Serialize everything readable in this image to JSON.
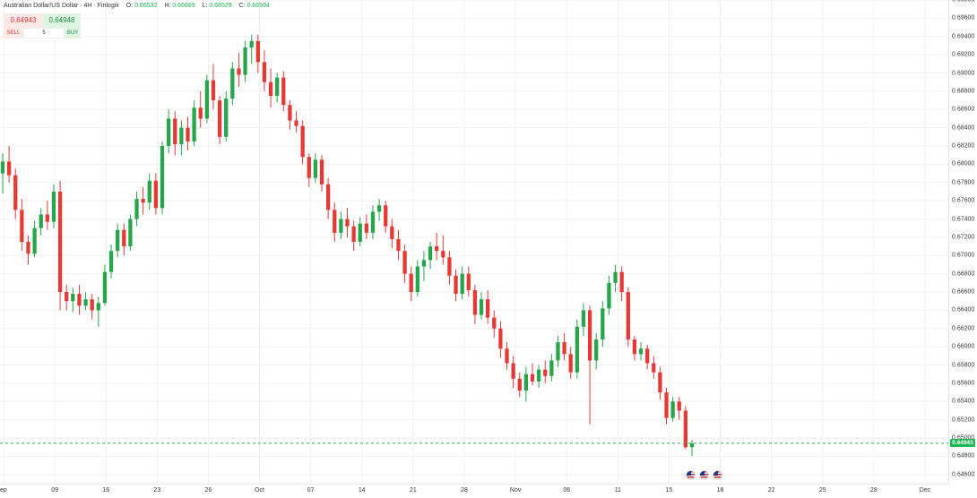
{
  "header": {
    "title": "Australian Dollar/US Dollar · 4H · Finlogix",
    "o_label": "O:",
    "o_value": "0.66532",
    "h_label": "H:",
    "h_value": "0.66689",
    "l_label": "L:",
    "l_value": "0.66529",
    "c_label": "C:",
    "c_value": "0.66594"
  },
  "trade": {
    "sell_price": "0.64943",
    "buy_price": "0.64948",
    "sell_label": "SELL",
    "buy_label": "BUY",
    "quantity": "5"
  },
  "current_price_label": "0.64943",
  "colors": {
    "up": "#26a64a",
    "down": "#e53935",
    "price_line": "#1db954"
  },
  "flags": [
    "us-flag-icon",
    "us-flag-icon",
    "us-flag-icon"
  ],
  "chart_data": {
    "type": "candlestick",
    "timeframe": "4H",
    "symbol": "AUD/USD",
    "ylim": [
      0.645,
      0.698
    ],
    "y_ticks": [
      "0.69800",
      "0.69600",
      "0.69400",
      "0.69200",
      "0.69000",
      "0.68800",
      "0.68600",
      "0.68400",
      "0.68200",
      "0.68000",
      "0.67800",
      "0.67600",
      "0.67400",
      "0.67200",
      "0.67000",
      "0.66800",
      "0.66600",
      "0.66400",
      "0.66200",
      "0.66000",
      "0.65800",
      "0.65600",
      "0.65400",
      "0.65200",
      "0.65000",
      "0.64800",
      "0.64600"
    ],
    "x_ticks": [
      "ep",
      "09",
      "16",
      "23",
      "26",
      "Oct",
      "07",
      "14",
      "21",
      "28",
      "Nov",
      "06",
      "11",
      "15",
      "18",
      "22",
      "25",
      "28",
      "Dec"
    ],
    "current_price": 0.64943,
    "grid": true,
    "candles": [
      {
        "o": 0.679,
        "h": 0.6812,
        "l": 0.6768,
        "c": 0.6803
      },
      {
        "o": 0.6803,
        "h": 0.682,
        "l": 0.678,
        "c": 0.6788
      },
      {
        "o": 0.6788,
        "h": 0.6795,
        "l": 0.674,
        "c": 0.675
      },
      {
        "o": 0.675,
        "h": 0.6762,
        "l": 0.6705,
        "c": 0.6715
      },
      {
        "o": 0.6715,
        "h": 0.6722,
        "l": 0.669,
        "c": 0.6702
      },
      {
        "o": 0.6702,
        "h": 0.6738,
        "l": 0.6698,
        "c": 0.673
      },
      {
        "o": 0.673,
        "h": 0.6752,
        "l": 0.6722,
        "c": 0.6745
      },
      {
        "o": 0.6745,
        "h": 0.676,
        "l": 0.6728,
        "c": 0.6737
      },
      {
        "o": 0.6737,
        "h": 0.6778,
        "l": 0.673,
        "c": 0.677
      },
      {
        "o": 0.677,
        "h": 0.6782,
        "l": 0.664,
        "c": 0.666
      },
      {
        "o": 0.666,
        "h": 0.6668,
        "l": 0.664,
        "c": 0.665
      },
      {
        "o": 0.665,
        "h": 0.6665,
        "l": 0.6638,
        "c": 0.6658
      },
      {
        "o": 0.6658,
        "h": 0.6668,
        "l": 0.6635,
        "c": 0.6645
      },
      {
        "o": 0.6645,
        "h": 0.666,
        "l": 0.664,
        "c": 0.6652
      },
      {
        "o": 0.6652,
        "h": 0.6658,
        "l": 0.663,
        "c": 0.664
      },
      {
        "o": 0.664,
        "h": 0.6655,
        "l": 0.6622,
        "c": 0.6648
      },
      {
        "o": 0.6648,
        "h": 0.669,
        "l": 0.6645,
        "c": 0.6682
      },
      {
        "o": 0.6682,
        "h": 0.6712,
        "l": 0.6675,
        "c": 0.6705
      },
      {
        "o": 0.6705,
        "h": 0.6735,
        "l": 0.6698,
        "c": 0.6728
      },
      {
        "o": 0.6728,
        "h": 0.6735,
        "l": 0.67,
        "c": 0.671
      },
      {
        "o": 0.671,
        "h": 0.6745,
        "l": 0.6705,
        "c": 0.674
      },
      {
        "o": 0.674,
        "h": 0.677,
        "l": 0.6732,
        "c": 0.6762
      },
      {
        "o": 0.6762,
        "h": 0.6775,
        "l": 0.6745,
        "c": 0.6758
      },
      {
        "o": 0.6758,
        "h": 0.679,
        "l": 0.675,
        "c": 0.6782
      },
      {
        "o": 0.6782,
        "h": 0.679,
        "l": 0.6745,
        "c": 0.6752
      },
      {
        "o": 0.6752,
        "h": 0.6825,
        "l": 0.6745,
        "c": 0.682
      },
      {
        "o": 0.682,
        "h": 0.686,
        "l": 0.6812,
        "c": 0.685
      },
      {
        "o": 0.685,
        "h": 0.6858,
        "l": 0.681,
        "c": 0.6822
      },
      {
        "o": 0.6822,
        "h": 0.6848,
        "l": 0.681,
        "c": 0.684
      },
      {
        "o": 0.684,
        "h": 0.6852,
        "l": 0.6815,
        "c": 0.6825
      },
      {
        "o": 0.6825,
        "h": 0.687,
        "l": 0.682,
        "c": 0.6862
      },
      {
        "o": 0.6862,
        "h": 0.688,
        "l": 0.684,
        "c": 0.685
      },
      {
        "o": 0.685,
        "h": 0.6898,
        "l": 0.6845,
        "c": 0.6892
      },
      {
        "o": 0.6892,
        "h": 0.691,
        "l": 0.686,
        "c": 0.687
      },
      {
        "o": 0.687,
        "h": 0.6875,
        "l": 0.6822,
        "c": 0.683
      },
      {
        "o": 0.683,
        "h": 0.688,
        "l": 0.6825,
        "c": 0.6872
      },
      {
        "o": 0.6872,
        "h": 0.6912,
        "l": 0.6865,
        "c": 0.6905
      },
      {
        "o": 0.6905,
        "h": 0.6922,
        "l": 0.6885,
        "c": 0.6898
      },
      {
        "o": 0.6898,
        "h": 0.6935,
        "l": 0.689,
        "c": 0.6928
      },
      {
        "o": 0.6928,
        "h": 0.6942,
        "l": 0.691,
        "c": 0.6935
      },
      {
        "o": 0.6935,
        "h": 0.6942,
        "l": 0.69,
        "c": 0.6912
      },
      {
        "o": 0.6912,
        "h": 0.6925,
        "l": 0.688,
        "c": 0.689
      },
      {
        "o": 0.689,
        "h": 0.6905,
        "l": 0.6862,
        "c": 0.6875
      },
      {
        "o": 0.6875,
        "h": 0.69,
        "l": 0.6868,
        "c": 0.6895
      },
      {
        "o": 0.6895,
        "h": 0.6902,
        "l": 0.6858,
        "c": 0.6865
      },
      {
        "o": 0.6865,
        "h": 0.687,
        "l": 0.6838,
        "c": 0.6848
      },
      {
        "o": 0.6848,
        "h": 0.6858,
        "l": 0.6835,
        "c": 0.6842
      },
      {
        "o": 0.6842,
        "h": 0.6848,
        "l": 0.68,
        "c": 0.6808
      },
      {
        "o": 0.6808,
        "h": 0.6812,
        "l": 0.6775,
        "c": 0.6785
      },
      {
        "o": 0.6785,
        "h": 0.6812,
        "l": 0.678,
        "c": 0.6805
      },
      {
        "o": 0.6805,
        "h": 0.681,
        "l": 0.677,
        "c": 0.6778
      },
      {
        "o": 0.6778,
        "h": 0.6785,
        "l": 0.674,
        "c": 0.675
      },
      {
        "o": 0.675,
        "h": 0.6758,
        "l": 0.6715,
        "c": 0.6725
      },
      {
        "o": 0.6725,
        "h": 0.6748,
        "l": 0.6718,
        "c": 0.674
      },
      {
        "o": 0.674,
        "h": 0.6752,
        "l": 0.672,
        "c": 0.6732
      },
      {
        "o": 0.6732,
        "h": 0.6738,
        "l": 0.6705,
        "c": 0.6715
      },
      {
        "o": 0.6715,
        "h": 0.6742,
        "l": 0.671,
        "c": 0.6735
      },
      {
        "o": 0.6735,
        "h": 0.6745,
        "l": 0.6718,
        "c": 0.6725
      },
      {
        "o": 0.6725,
        "h": 0.6755,
        "l": 0.6718,
        "c": 0.6748
      },
      {
        "o": 0.6748,
        "h": 0.6762,
        "l": 0.6738,
        "c": 0.6755
      },
      {
        "o": 0.6755,
        "h": 0.676,
        "l": 0.6725,
        "c": 0.6732
      },
      {
        "o": 0.6732,
        "h": 0.674,
        "l": 0.6708,
        "c": 0.6718
      },
      {
        "o": 0.6718,
        "h": 0.6728,
        "l": 0.6695,
        "c": 0.6705
      },
      {
        "o": 0.6705,
        "h": 0.6712,
        "l": 0.667,
        "c": 0.668
      },
      {
        "o": 0.668,
        "h": 0.6688,
        "l": 0.665,
        "c": 0.666
      },
      {
        "o": 0.666,
        "h": 0.6695,
        "l": 0.6655,
        "c": 0.6688
      },
      {
        "o": 0.6688,
        "h": 0.6705,
        "l": 0.6672,
        "c": 0.6695
      },
      {
        "o": 0.6695,
        "h": 0.6715,
        "l": 0.6685,
        "c": 0.671
      },
      {
        "o": 0.671,
        "h": 0.6725,
        "l": 0.6695,
        "c": 0.6705
      },
      {
        "o": 0.6705,
        "h": 0.6722,
        "l": 0.669,
        "c": 0.6698
      },
      {
        "o": 0.6698,
        "h": 0.6705,
        "l": 0.6668,
        "c": 0.6678
      },
      {
        "o": 0.6678,
        "h": 0.6685,
        "l": 0.665,
        "c": 0.6658
      },
      {
        "o": 0.6658,
        "h": 0.6688,
        "l": 0.6652,
        "c": 0.668
      },
      {
        "o": 0.668,
        "h": 0.6688,
        "l": 0.6655,
        "c": 0.6662
      },
      {
        "o": 0.6662,
        "h": 0.6668,
        "l": 0.6625,
        "c": 0.6635
      },
      {
        "o": 0.6635,
        "h": 0.666,
        "l": 0.663,
        "c": 0.6652
      },
      {
        "o": 0.6652,
        "h": 0.6662,
        "l": 0.6625,
        "c": 0.6632
      },
      {
        "o": 0.6632,
        "h": 0.664,
        "l": 0.661,
        "c": 0.662
      },
      {
        "o": 0.662,
        "h": 0.6628,
        "l": 0.6588,
        "c": 0.6598
      },
      {
        "o": 0.6598,
        "h": 0.6605,
        "l": 0.6575,
        "c": 0.6582
      },
      {
        "o": 0.6582,
        "h": 0.659,
        "l": 0.6555,
        "c": 0.6565
      },
      {
        "o": 0.6565,
        "h": 0.6572,
        "l": 0.6545,
        "c": 0.6552
      },
      {
        "o": 0.6552,
        "h": 0.6578,
        "l": 0.654,
        "c": 0.657
      },
      {
        "o": 0.657,
        "h": 0.6582,
        "l": 0.6558,
        "c": 0.6562
      },
      {
        "o": 0.6562,
        "h": 0.658,
        "l": 0.6555,
        "c": 0.6575
      },
      {
        "o": 0.6575,
        "h": 0.6585,
        "l": 0.656,
        "c": 0.6568
      },
      {
        "o": 0.6568,
        "h": 0.6592,
        "l": 0.6562,
        "c": 0.6585
      },
      {
        "o": 0.6585,
        "h": 0.6612,
        "l": 0.6578,
        "c": 0.6605
      },
      {
        "o": 0.6605,
        "h": 0.6615,
        "l": 0.6585,
        "c": 0.6592
      },
      {
        "o": 0.6592,
        "h": 0.66,
        "l": 0.6565,
        "c": 0.6572
      },
      {
        "o": 0.6572,
        "h": 0.663,
        "l": 0.6565,
        "c": 0.6622
      },
      {
        "o": 0.6622,
        "h": 0.6648,
        "l": 0.6612,
        "c": 0.664
      },
      {
        "o": 0.664,
        "h": 0.6645,
        "l": 0.6515,
        "c": 0.6585
      },
      {
        "o": 0.6585,
        "h": 0.6615,
        "l": 0.6575,
        "c": 0.6608
      },
      {
        "o": 0.6608,
        "h": 0.665,
        "l": 0.66,
        "c": 0.6642
      },
      {
        "o": 0.6642,
        "h": 0.6678,
        "l": 0.6635,
        "c": 0.667
      },
      {
        "o": 0.667,
        "h": 0.669,
        "l": 0.666,
        "c": 0.6682
      },
      {
        "o": 0.6682,
        "h": 0.6688,
        "l": 0.665,
        "c": 0.666
      },
      {
        "o": 0.666,
        "h": 0.6665,
        "l": 0.66,
        "c": 0.6608
      },
      {
        "o": 0.6608,
        "h": 0.6612,
        "l": 0.6585,
        "c": 0.6592
      },
      {
        "o": 0.6592,
        "h": 0.6605,
        "l": 0.6585,
        "c": 0.6598
      },
      {
        "o": 0.6598,
        "h": 0.6602,
        "l": 0.6575,
        "c": 0.6582
      },
      {
        "o": 0.6582,
        "h": 0.659,
        "l": 0.6565,
        "c": 0.6572
      },
      {
        "o": 0.6572,
        "h": 0.6578,
        "l": 0.6542,
        "c": 0.655
      },
      {
        "o": 0.655,
        "h": 0.6555,
        "l": 0.6515,
        "c": 0.6522
      },
      {
        "o": 0.6522,
        "h": 0.6545,
        "l": 0.6518,
        "c": 0.654
      },
      {
        "o": 0.654,
        "h": 0.6545,
        "l": 0.652,
        "c": 0.653
      },
      {
        "o": 0.653,
        "h": 0.6535,
        "l": 0.6488,
        "c": 0.649
      },
      {
        "o": 0.649,
        "h": 0.6498,
        "l": 0.648,
        "c": 0.6494
      }
    ]
  }
}
